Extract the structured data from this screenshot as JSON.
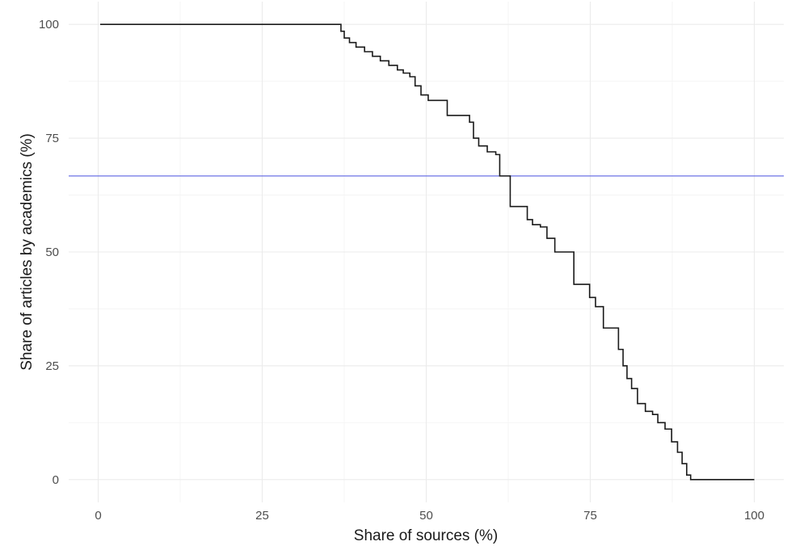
{
  "chart_data": {
    "type": "line",
    "title": "",
    "xlabel": "Share of sources (%)",
    "ylabel": "Share of articles by academics (%)",
    "xlim": [
      -4.5,
      104.5
    ],
    "ylim": [
      -5,
      105
    ],
    "x_ticks": [
      0,
      25,
      50,
      75,
      100
    ],
    "y_ticks": [
      0,
      25,
      50,
      75,
      100
    ],
    "grid": true,
    "series": [
      {
        "color": "#1a1a1a",
        "step": true,
        "x": [
          0.3,
          36.5,
          37.0,
          37.5,
          38.3,
          39.3,
          40.6,
          41.8,
          43.0,
          44.3,
          45.6,
          46.5,
          47.5,
          48.3,
          49.2,
          50.3,
          51.9,
          53.2,
          55.8,
          56.6,
          57.2,
          58.0,
          59.3,
          60.6,
          61.2,
          62.8,
          63.6,
          65.4,
          66.2,
          67.4,
          68.4,
          69.6,
          71.4,
          72.5,
          73.7,
          74.9,
          75.8,
          77.0,
          78.2,
          79.3,
          80.0,
          80.6,
          81.3,
          82.2,
          83.4,
          84.5,
          85.3,
          86.4,
          87.4,
          88.3,
          89.0,
          89.7,
          90.3,
          100.0
        ],
        "values": [
          100,
          100,
          98.5,
          97.0,
          96.0,
          95.0,
          94.0,
          93.0,
          92.0,
          91.0,
          90.0,
          89.3,
          88.5,
          86.5,
          84.5,
          83.3,
          83.3,
          80.0,
          80.0,
          78.5,
          75.0,
          73.3,
          72.0,
          71.4,
          66.7,
          60.0,
          60.0,
          57.1,
          56.0,
          55.5,
          53.0,
          50.0,
          50.0,
          42.9,
          42.9,
          40.0,
          38.0,
          33.3,
          33.3,
          28.6,
          25.0,
          22.2,
          20.0,
          16.7,
          15.0,
          14.3,
          12.5,
          11.1,
          8.3,
          6.0,
          3.5,
          1.0,
          0,
          0
        ]
      }
    ],
    "reference_lines": [
      {
        "orientation": "horizontal",
        "y": 66.7,
        "color": "#6b72e6"
      }
    ]
  }
}
